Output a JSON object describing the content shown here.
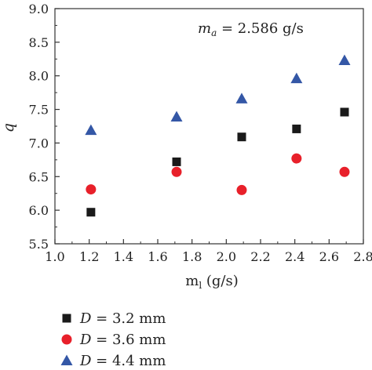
{
  "chart_data": {
    "type": "scatter",
    "title": "",
    "annotation": {
      "var": "m",
      "sub": "a",
      "rest": " = 2.586 g/s"
    },
    "xlabel": {
      "main": "m",
      "sub": "l",
      "rest": " (g/s)"
    },
    "ylabel": "q",
    "xlim": [
      1.0,
      2.8
    ],
    "ylim": [
      5.5,
      9.0
    ],
    "xticks": [
      "1.0",
      "1.2",
      "1.4",
      "1.6",
      "1.8",
      "2.0",
      "2.2",
      "2.4",
      "2.6",
      "2.8"
    ],
    "yticks": [
      "5.5",
      "6.0",
      "6.5",
      "7.0",
      "7.5",
      "8.0",
      "8.5",
      "9.0"
    ],
    "grid": false,
    "legend_position": "below",
    "series": [
      {
        "name": "D = 3.2 mm",
        "var": "D",
        "rest": " = 3.2 mm",
        "marker": "square",
        "color": "#1a1a1a",
        "x": [
          1.21,
          1.71,
          2.09,
          2.41,
          2.69
        ],
        "y": [
          5.97,
          6.72,
          7.09,
          7.21,
          7.46
        ]
      },
      {
        "name": "D = 3.6 mm",
        "var": "D",
        "rest": " = 3.6 mm",
        "marker": "circle",
        "color": "#e8202a",
        "x": [
          1.21,
          1.71,
          2.09,
          2.41,
          2.69
        ],
        "y": [
          6.31,
          6.57,
          6.3,
          6.77,
          6.57
        ]
      },
      {
        "name": "D = 4.4 mm",
        "var": "D",
        "rest": " = 4.4 mm",
        "marker": "triangle",
        "color": "#3457a6",
        "x": [
          1.21,
          1.71,
          2.09,
          2.41,
          2.69
        ],
        "y": [
          7.19,
          7.39,
          7.66,
          7.96,
          8.23
        ]
      }
    ]
  }
}
